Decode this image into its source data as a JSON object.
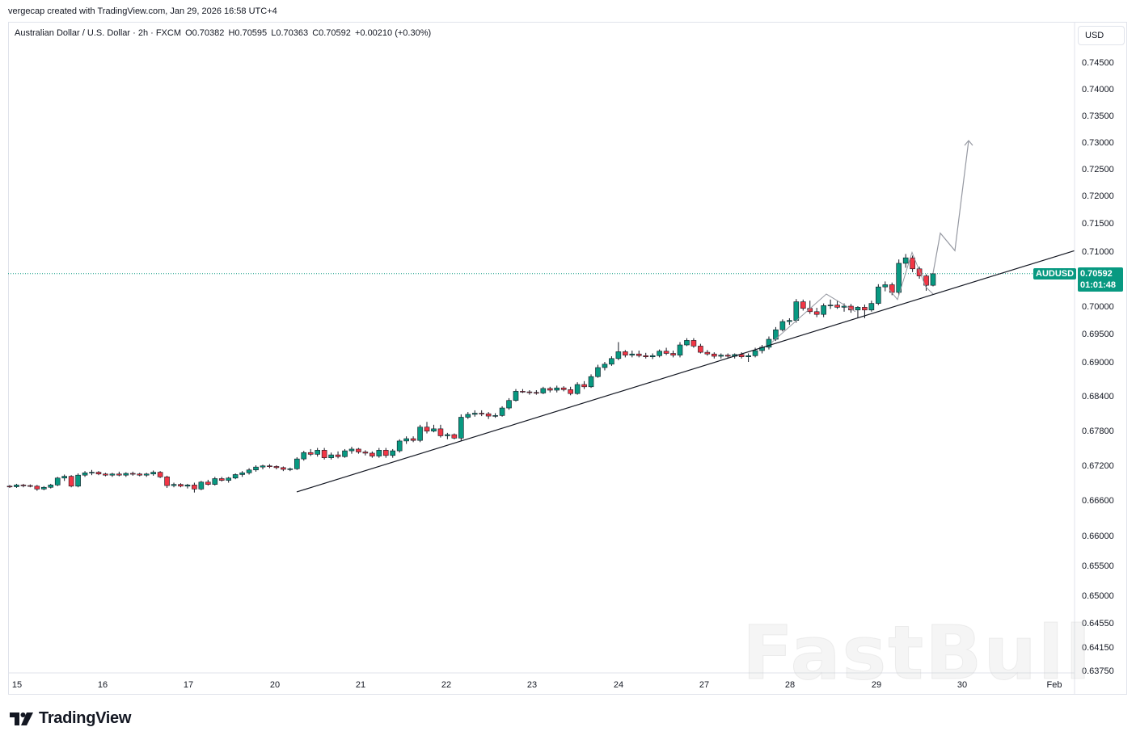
{
  "header": {
    "credit": "vergecap created with TradingView.com, Jan 29, 2026 16:58 UTC+4"
  },
  "legend": {
    "symbol_line": "Australian Dollar / U.S. Dollar · 2h · FXCM",
    "open": "O0.70382",
    "high": "H0.70595",
    "low": "L0.70363",
    "close": "C0.70592",
    "change": "+0.00210 (+0.30%)"
  },
  "currency_button": "USD",
  "price_label": {
    "symbol": "AUDUSD",
    "price": "0.70592",
    "countdown": "01:01:48"
  },
  "watermark": "FastBull",
  "footer_logo": "TradingView",
  "colors": {
    "up": "#089981",
    "down": "#f23645",
    "line": "#131722",
    "projection": "#9598a1"
  },
  "chart_data": {
    "type": "candlestick",
    "title": "Australian Dollar / U.S. Dollar · 2h · FXCM",
    "y_ticks": [
      "0.74500",
      "0.74000",
      "0.73500",
      "0.73000",
      "0.72500",
      "0.72000",
      "0.71500",
      "0.71000",
      "0.70000",
      "0.69500",
      "0.69000",
      "0.68400",
      "0.67800",
      "0.67200",
      "0.66600",
      "0.66000",
      "0.65500",
      "0.65000",
      "0.64550",
      "0.64150",
      "0.63750"
    ],
    "x_ticks": [
      "15",
      "16",
      "17",
      "20",
      "21",
      "22",
      "23",
      "24",
      "27",
      "28",
      "29",
      "30",
      "Feb"
    ],
    "candles": [
      [
        0.6684,
        0.6686,
        0.6681,
        0.6683
      ],
      [
        0.6683,
        0.6688,
        0.6681,
        0.6686
      ],
      [
        0.6686,
        0.6688,
        0.6682,
        0.6685
      ],
      [
        0.6685,
        0.6687,
        0.6682,
        0.6684
      ],
      [
        0.6684,
        0.6686,
        0.6676,
        0.6679
      ],
      [
        0.6679,
        0.6684,
        0.6677,
        0.6682
      ],
      [
        0.6682,
        0.6688,
        0.668,
        0.6686
      ],
      [
        0.6686,
        0.67,
        0.6684,
        0.6698
      ],
      [
        0.6698,
        0.6704,
        0.6693,
        0.6701
      ],
      [
        0.6701,
        0.6703,
        0.6682,
        0.6684
      ],
      [
        0.6684,
        0.6706,
        0.6682,
        0.6703
      ],
      [
        0.6703,
        0.671,
        0.67,
        0.6707
      ],
      [
        0.6707,
        0.6712,
        0.6703,
        0.6708
      ],
      [
        0.6708,
        0.671,
        0.6703,
        0.6705
      ],
      [
        0.6705,
        0.6707,
        0.6701,
        0.6703
      ],
      [
        0.6703,
        0.6707,
        0.67,
        0.6705
      ],
      [
        0.6705,
        0.6709,
        0.6701,
        0.6703
      ],
      [
        0.6703,
        0.6708,
        0.67,
        0.6706
      ],
      [
        0.6706,
        0.6709,
        0.6702,
        0.6705
      ],
      [
        0.6705,
        0.6707,
        0.6701,
        0.6703
      ],
      [
        0.6703,
        0.6707,
        0.67,
        0.6705
      ],
      [
        0.6705,
        0.6711,
        0.6702,
        0.6708
      ],
      [
        0.6708,
        0.671,
        0.6698,
        0.67
      ],
      [
        0.67,
        0.6702,
        0.6681,
        0.6685
      ],
      [
        0.6685,
        0.669,
        0.6682,
        0.6687
      ],
      [
        0.6687,
        0.6689,
        0.6682,
        0.6684
      ],
      [
        0.6684,
        0.6688,
        0.668,
        0.6686
      ],
      [
        0.6686,
        0.669,
        0.6673,
        0.6679
      ],
      [
        0.6679,
        0.6693,
        0.6677,
        0.6691
      ],
      [
        0.6691,
        0.6695,
        0.6685,
        0.6687
      ],
      [
        0.6687,
        0.67,
        0.6685,
        0.6697
      ],
      [
        0.6697,
        0.67,
        0.6692,
        0.6694
      ],
      [
        0.6694,
        0.67,
        0.669,
        0.6698
      ],
      [
        0.6698,
        0.6706,
        0.6696,
        0.6704
      ],
      [
        0.6704,
        0.671,
        0.67,
        0.6707
      ],
      [
        0.6707,
        0.6715,
        0.6704,
        0.6712
      ],
      [
        0.6712,
        0.672,
        0.6709,
        0.6717
      ],
      [
        0.6717,
        0.6721,
        0.6713,
        0.6719
      ],
      [
        0.6719,
        0.6722,
        0.6715,
        0.6718
      ],
      [
        0.6718,
        0.672,
        0.6713,
        0.6716
      ],
      [
        0.6716,
        0.6718,
        0.671,
        0.6713
      ],
      [
        0.6713,
        0.6716,
        0.671,
        0.6714
      ],
      [
        0.6714,
        0.6734,
        0.6712,
        0.6731
      ],
      [
        0.6731,
        0.6745,
        0.6728,
        0.6742
      ],
      [
        0.6742,
        0.6748,
        0.6736,
        0.6739
      ],
      [
        0.6739,
        0.675,
        0.6735,
        0.6746
      ],
      [
        0.6746,
        0.675,
        0.673,
        0.6733
      ],
      [
        0.6733,
        0.6742,
        0.673,
        0.6738
      ],
      [
        0.6738,
        0.6744,
        0.6732,
        0.6735
      ],
      [
        0.6735,
        0.6748,
        0.6733,
        0.6745
      ],
      [
        0.6745,
        0.6752,
        0.674,
        0.6748
      ],
      [
        0.6748,
        0.675,
        0.674,
        0.6743
      ],
      [
        0.6743,
        0.6746,
        0.6737,
        0.6741
      ],
      [
        0.6741,
        0.6744,
        0.6733,
        0.6736
      ],
      [
        0.6736,
        0.675,
        0.6733,
        0.6746
      ],
      [
        0.6746,
        0.675,
        0.6733,
        0.6737
      ],
      [
        0.6737,
        0.6748,
        0.6733,
        0.6745
      ],
      [
        0.6745,
        0.6765,
        0.6742,
        0.6762
      ],
      [
        0.6762,
        0.677,
        0.6757,
        0.6766
      ],
      [
        0.6766,
        0.677,
        0.676,
        0.6763
      ],
      [
        0.6763,
        0.679,
        0.676,
        0.6786
      ],
      [
        0.6786,
        0.6795,
        0.6775,
        0.6779
      ],
      [
        0.6779,
        0.679,
        0.6777,
        0.6783
      ],
      [
        0.6783,
        0.679,
        0.6768,
        0.6771
      ],
      [
        0.6771,
        0.6776,
        0.6765,
        0.6773
      ],
      [
        0.6773,
        0.6775,
        0.6765,
        0.6767
      ],
      [
        0.6767,
        0.6808,
        0.6762,
        0.6803
      ],
      [
        0.6803,
        0.6812,
        0.68,
        0.6808
      ],
      [
        0.6808,
        0.6815,
        0.6804,
        0.681
      ],
      [
        0.681,
        0.6815,
        0.6805,
        0.6809
      ],
      [
        0.6809,
        0.6812,
        0.68,
        0.6805
      ],
      [
        0.6805,
        0.681,
        0.6802,
        0.6806
      ],
      [
        0.6806,
        0.6822,
        0.6804,
        0.6819
      ],
      [
        0.6819,
        0.6836,
        0.6816,
        0.6832
      ],
      [
        0.6832,
        0.6852,
        0.683,
        0.6848
      ],
      [
        0.6848,
        0.6852,
        0.6845,
        0.6847
      ],
      [
        0.6847,
        0.685,
        0.6842,
        0.6846
      ],
      [
        0.6846,
        0.685,
        0.6842,
        0.6845
      ],
      [
        0.6845,
        0.6856,
        0.6843,
        0.6853
      ],
      [
        0.6853,
        0.6856,
        0.6846,
        0.685
      ],
      [
        0.685,
        0.6858,
        0.6846,
        0.6854
      ],
      [
        0.6854,
        0.6857,
        0.6848,
        0.6851
      ],
      [
        0.6851,
        0.6856,
        0.6841,
        0.6844
      ],
      [
        0.6844,
        0.6864,
        0.6842,
        0.686
      ],
      [
        0.686,
        0.6866,
        0.6852,
        0.6856
      ],
      [
        0.6856,
        0.6878,
        0.6854,
        0.6874
      ],
      [
        0.6874,
        0.6895,
        0.6872,
        0.689
      ],
      [
        0.689,
        0.69,
        0.6885,
        0.6896
      ],
      [
        0.6896,
        0.691,
        0.6893,
        0.6906
      ],
      [
        0.6906,
        0.6935,
        0.6903,
        0.6918
      ],
      [
        0.6918,
        0.6921,
        0.6908,
        0.6912
      ],
      [
        0.6912,
        0.692,
        0.6908,
        0.6914
      ],
      [
        0.6914,
        0.692,
        0.6908,
        0.6911
      ],
      [
        0.6911,
        0.6916,
        0.6906,
        0.6909
      ],
      [
        0.6909,
        0.6915,
        0.6905,
        0.6911
      ],
      [
        0.6911,
        0.6922,
        0.6908,
        0.6919
      ],
      [
        0.6919,
        0.6925,
        0.6912,
        0.6915
      ],
      [
        0.6915,
        0.692,
        0.6908,
        0.6912
      ],
      [
        0.6912,
        0.6935,
        0.6908,
        0.693
      ],
      [
        0.693,
        0.6942,
        0.6928,
        0.6938
      ],
      [
        0.6938,
        0.6942,
        0.6925,
        0.6928
      ],
      [
        0.6928,
        0.6932,
        0.6915,
        0.6917
      ],
      [
        0.6917,
        0.6921,
        0.6911,
        0.6914
      ],
      [
        0.6914,
        0.6917,
        0.6906,
        0.691
      ],
      [
        0.691,
        0.6915,
        0.6906,
        0.6912
      ],
      [
        0.6912,
        0.6915,
        0.6906,
        0.691
      ],
      [
        0.691,
        0.6915,
        0.6906,
        0.6913
      ],
      [
        0.6913,
        0.6917,
        0.6906,
        0.6909
      ],
      [
        0.6909,
        0.6915,
        0.69,
        0.6911
      ],
      [
        0.6911,
        0.6925,
        0.6908,
        0.692
      ],
      [
        0.692,
        0.693,
        0.6915,
        0.6926
      ],
      [
        0.6926,
        0.6945,
        0.6922,
        0.694
      ],
      [
        0.694,
        0.6962,
        0.6937,
        0.6957
      ],
      [
        0.6957,
        0.6976,
        0.6954,
        0.6972
      ],
      [
        0.6972,
        0.6978,
        0.6966,
        0.6974
      ],
      [
        0.6974,
        0.7013,
        0.697,
        0.7008
      ],
      [
        0.7008,
        0.7012,
        0.6992,
        0.6996
      ],
      [
        0.6996,
        0.701,
        0.6986,
        0.699
      ],
      [
        0.699,
        0.6997,
        0.698,
        0.6985
      ],
      [
        0.6985,
        0.7005,
        0.698,
        0.7001
      ],
      [
        0.7001,
        0.7012,
        0.6995,
        0.7002
      ],
      [
        0.7002,
        0.701,
        0.6995,
        0.6998
      ],
      [
        0.6998,
        0.7005,
        0.699,
        0.7
      ],
      [
        0.7,
        0.7004,
        0.6988,
        0.6993
      ],
      [
        0.6993,
        0.7,
        0.6978,
        0.6998
      ],
      [
        0.6998,
        0.7003,
        0.6978,
        0.6993
      ],
      [
        0.6993,
        0.701,
        0.699,
        0.7005
      ],
      [
        0.7005,
        0.704,
        0.7002,
        0.7035
      ],
      [
        0.7035,
        0.7045,
        0.7027,
        0.7039
      ],
      [
        0.7039,
        0.7043,
        0.702,
        0.7025
      ],
      [
        0.7025,
        0.7085,
        0.702,
        0.7078
      ],
      [
        0.7078,
        0.7095,
        0.707,
        0.7088
      ],
      [
        0.7088,
        0.7092,
        0.7062,
        0.7068
      ],
      [
        0.7068,
        0.7072,
        0.705,
        0.7055
      ],
      [
        0.7055,
        0.7058,
        0.7028,
        0.7038
      ],
      [
        0.7038,
        0.706,
        0.7036,
        0.7059
      ]
    ],
    "trendline": [
      [
        0.6674,
        "Jan 20"
      ],
      [
        0.7101,
        "Feb"
      ]
    ],
    "projection_path": [
      "0.7060",
      "0.7132",
      "0.7101",
      "0.7303"
    ],
    "current_price": 0.70592
  }
}
